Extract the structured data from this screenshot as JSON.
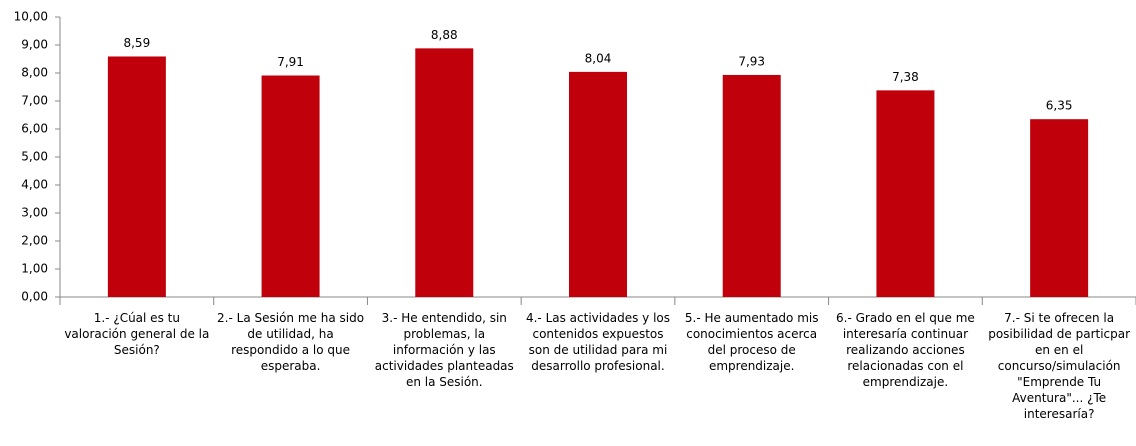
{
  "chart_data": {
    "type": "bar",
    "categories": [
      "1.- ¿Cúal es tu valoración general de la Sesión?",
      "2.- La Sesión me ha sido de utilidad, ha respondido a lo que esperaba.",
      "3.- He entendido, sin problemas, la información y las actividades planteadas en la Sesión.",
      "4.- Las actividades y los contenidos expuestos son de utilidad para mi desarrollo profesional.",
      "5.- He aumentado mis conocimientos acerca del proceso de emprendizaje.",
      "6.- Grado en el que me interesaría continuar realizando acciones relacionadas con el emprendizaje.",
      "7.- Si te ofrecen la posibilidad de particpar en en el concurso/simulación \"Emprende Tu Aventura\"... ¿Te interesaría?"
    ],
    "values": [
      8.59,
      7.91,
      8.88,
      8.04,
      7.93,
      7.38,
      6.35
    ],
    "value_labels": [
      "8,59",
      "7,91",
      "8,88",
      "8,04",
      "7,93",
      "7,38",
      "6,35"
    ],
    "color": "#c0000b",
    "ylim": [
      0,
      10
    ],
    "yticks": [
      {
        "value": 0,
        "label": "0,00"
      },
      {
        "value": 1,
        "label": "1,00"
      },
      {
        "value": 2,
        "label": "2,00"
      },
      {
        "value": 3,
        "label": "3,00"
      },
      {
        "value": 4,
        "label": "4,00"
      },
      {
        "value": 5,
        "label": "5,00"
      },
      {
        "value": 6,
        "label": "6,00"
      },
      {
        "value": 7,
        "label": "7,00"
      },
      {
        "value": 8,
        "label": "8,00"
      },
      {
        "value": 9,
        "label": "9,00"
      },
      {
        "value": 10,
        "label": "10,00"
      }
    ],
    "grid": false
  }
}
